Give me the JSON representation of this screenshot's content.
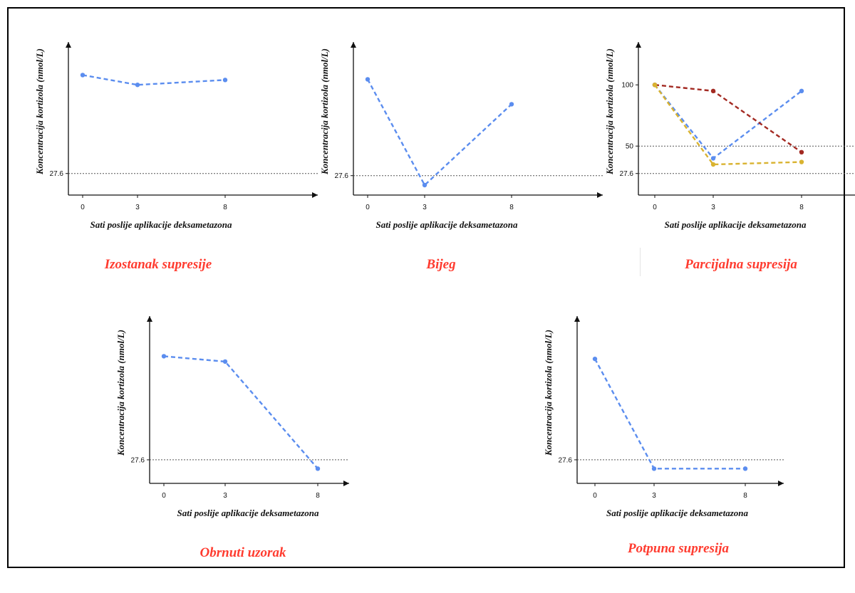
{
  "chart_data": [
    {
      "type": "line",
      "title": "Izostanak supresije",
      "xlabel": "Sati poslije aplikacije deksametazona",
      "ylabel": "Koncentracija kortizola (nmol/L)",
      "x": [
        "0",
        "3",
        "8"
      ],
      "ylim": [
        10,
        135
      ],
      "yticks": [
        27.6
      ],
      "reference_lines": [
        27.6
      ],
      "series": [
        {
          "color": "#5b8def",
          "values": [
            108,
            100,
            104
          ]
        }
      ]
    },
    {
      "type": "line",
      "title": "Bijeg",
      "xlabel": "Sati poslije aplikacije deksametazona",
      "ylabel": "Koncentracija kortizola (nmol/L)",
      "x": [
        "0",
        "3",
        "8"
      ],
      "ylim": [
        12,
        135
      ],
      "yticks": [
        27.6
      ],
      "reference_lines": [
        27.6
      ],
      "series": [
        {
          "color": "#5b8def",
          "values": [
            105,
            20,
            85
          ]
        }
      ]
    },
    {
      "type": "line",
      "title": "Parcijalna supresija",
      "xlabel": "Sati poslije aplikacije deksametazona",
      "ylabel": "Koncentracija kortizola (nmol/L)",
      "x": [
        "0",
        "3",
        "8"
      ],
      "ylim": [
        10,
        135
      ],
      "yticks": [
        27.6,
        50,
        100
      ],
      "reference_lines": [
        27.6,
        50
      ],
      "series": [
        {
          "color": "#5b8def",
          "values": [
            100,
            40,
            95
          ]
        },
        {
          "color": "#a32a22",
          "values": [
            100,
            95,
            45
          ]
        },
        {
          "color": "#d9b330",
          "values": [
            100,
            35,
            37
          ]
        }
      ]
    },
    {
      "type": "line",
      "title": "Obrnuti uzorak",
      "xlabel": "Sati poslije aplikacije deksametazona",
      "ylabel": "Koncentracija kortizola (nmol/L)",
      "x": [
        "0",
        "3",
        "8"
      ],
      "ylim": [
        10,
        135
      ],
      "yticks": [
        27.6
      ],
      "reference_lines": [
        27.6
      ],
      "series": [
        {
          "color": "#5b8def",
          "values": [
            105,
            101,
            21
          ]
        }
      ]
    },
    {
      "type": "line",
      "title": "Potpuna supresija",
      "xlabel": "Sati poslije aplikacije deksametazona",
      "ylabel": "Koncentracija kortizola (nmol/L)",
      "x": [
        "0",
        "3",
        "8"
      ],
      "ylim": [
        10,
        135
      ],
      "yticks": [
        27.6
      ],
      "reference_lines": [
        27.6
      ],
      "series": [
        {
          "color": "#5b8def",
          "values": [
            103,
            21,
            21
          ]
        }
      ]
    }
  ]
}
